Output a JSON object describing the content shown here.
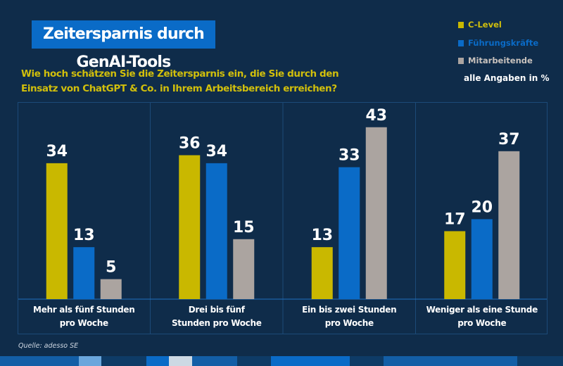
{
  "title": "Zeitersparnis durch GenAI-Tools",
  "question": [
    "Wie hoch schätzen Sie die Zeitersparnis ein, die Sie durch den",
    "Einsatz von ChatGPT & Co. in Ihrem Arbeitsbereich erreichen?"
  ],
  "units_note": "alle Angaben in %",
  "source": "Quelle: adesso SE",
  "chart_data": {
    "type": "bar",
    "categories": [
      [
        "Mehr als fünf Stunden",
        "pro Woche"
      ],
      [
        "Drei bis fünf",
        "Stunden pro Woche"
      ],
      [
        "Ein bis zwei Stunden",
        "pro Woche"
      ],
      [
        "Weniger als eine Stunde",
        "pro Woche"
      ]
    ],
    "series": [
      {
        "name": "C-Level",
        "color": "#c9b800",
        "values": [
          34,
          36,
          13,
          17
        ]
      },
      {
        "name": "Führungskräfte",
        "color": "#0a6bc7",
        "values": [
          13,
          34,
          33,
          20
        ]
      },
      {
        "name": "Mitarbeitende",
        "color": "#aba4a0",
        "values": [
          5,
          15,
          43,
          37
        ]
      }
    ],
    "ylim": [
      0,
      45
    ],
    "legend": "top-right",
    "grid": false
  }
}
